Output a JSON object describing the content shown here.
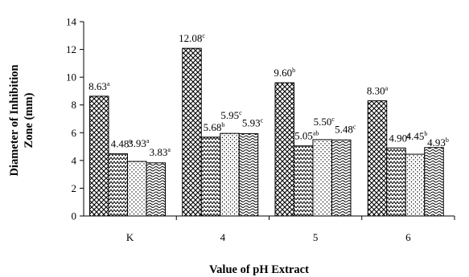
{
  "chart_data": {
    "type": "bar",
    "title": "",
    "xlabel": "Value of pH Extract",
    "ylabel": "Diameter of Inhibition Zone (mm)",
    "ylim": [
      0,
      14
    ],
    "yticks": [
      0,
      2,
      4,
      6,
      8,
      10,
      12,
      14
    ],
    "grid": false,
    "legend": "none",
    "categories": [
      "K",
      "4",
      "5",
      "6"
    ],
    "series": [
      {
        "pattern": "diamond-hatch",
        "values": [
          8.63,
          12.08,
          9.6,
          8.3
        ],
        "labels": [
          "8.63",
          "12.08",
          "9.60",
          "8.30"
        ],
        "letters": [
          "a",
          "c",
          "b",
          "a"
        ]
      },
      {
        "pattern": "zigzag",
        "values": [
          4.48,
          5.68,
          5.05,
          4.9
        ],
        "labels": [
          "4.48",
          "5.68",
          "5.05",
          "4.90"
        ],
        "letters": [
          "a",
          "b",
          "ab",
          "a"
        ]
      },
      {
        "pattern": "dots",
        "values": [
          3.93,
          5.95,
          5.5,
          4.45
        ],
        "labels": [
          "3.93",
          "5.95",
          "5.50",
          "4.45"
        ],
        "letters": [
          "a",
          "c",
          "c",
          "b"
        ]
      },
      {
        "pattern": "waves",
        "values": [
          3.83,
          5.93,
          5.48,
          4.93
        ],
        "labels": [
          "3.83",
          "5.93",
          "5.48",
          "4.93"
        ],
        "letters": [
          "a",
          "c",
          "c",
          "b"
        ]
      }
    ]
  }
}
